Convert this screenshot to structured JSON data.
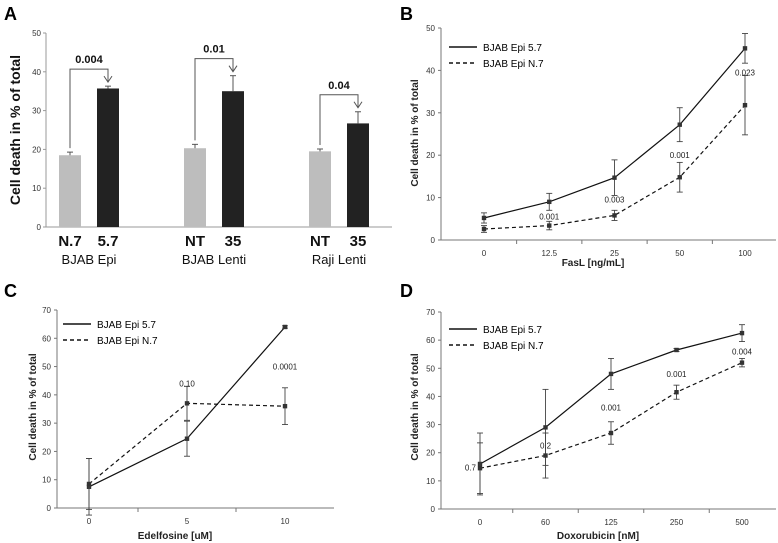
{
  "chart_data": [
    {
      "panel": "A",
      "type": "bar",
      "ylabel": "Cell death in % of total",
      "ylim": [
        0,
        50
      ],
      "yticks": [
        0,
        10,
        20,
        30,
        40,
        50
      ],
      "groups": [
        {
          "name": "BJAB Epi",
          "bars": [
            {
              "label": "N.7",
              "value": 18.5,
              "err": 0.8,
              "color": "#bdbdbd"
            },
            {
              "label": "5.7",
              "value": 35.7,
              "err": 0.6,
              "color": "#222222"
            }
          ],
          "pvalue": "0.004"
        },
        {
          "name": "BJAB Lenti",
          "bars": [
            {
              "label": "NT",
              "value": 20.3,
              "err": 1.0,
              "color": "#bdbdbd"
            },
            {
              "label": "35",
              "value": 35.0,
              "err": 4.0,
              "color": "#222222"
            }
          ],
          "pvalue": "0.01"
        },
        {
          "name": "Raji Lenti",
          "bars": [
            {
              "label": "NT",
              "value": 19.5,
              "err": 0.6,
              "color": "#bdbdbd"
            },
            {
              "label": "35",
              "value": 26.7,
              "err": 3.0,
              "color": "#222222"
            }
          ],
          "pvalue": "0.04"
        }
      ]
    },
    {
      "panel": "B",
      "type": "line",
      "xlabel": "FasL [ng/mL]",
      "ylabel": "Cell death in % of total",
      "categories": [
        "0",
        "12.5",
        "25",
        "50",
        "100"
      ],
      "ylim": [
        0,
        50
      ],
      "yticks": [
        0,
        10,
        20,
        30,
        40,
        50
      ],
      "series": [
        {
          "name": "BJAB Epi 5.7",
          "style": "solid",
          "values": [
            5.2,
            9.0,
            14.7,
            27.2,
            45.2
          ],
          "errors": [
            1.2,
            2.0,
            4.2,
            4.0,
            3.5
          ]
        },
        {
          "name": "BJAB Epi N.7",
          "style": "dashed",
          "values": [
            2.6,
            3.4,
            5.8,
            14.8,
            31.8
          ],
          "errors": [
            0.8,
            1.0,
            1.2,
            3.5,
            7.0
          ]
        }
      ],
      "annotations": [
        {
          "text": "0.001",
          "index": 1,
          "y": 5.5
        },
        {
          "text": "0.003",
          "index": 2,
          "y": 9.5
        },
        {
          "text": "0.001",
          "index": 3,
          "y": 20.0
        },
        {
          "text": "0.023",
          "index": 4,
          "y": 39.5
        }
      ]
    },
    {
      "panel": "C",
      "type": "line",
      "xlabel": "Edelfosine [uM]",
      "ylabel": "Cell death in % of total",
      "categories": [
        "0",
        "5",
        "10"
      ],
      "ylim": [
        0,
        70
      ],
      "yticks": [
        0,
        10,
        20,
        30,
        40,
        50,
        60,
        70
      ],
      "series": [
        {
          "name": "BJAB Epi 5.7",
          "style": "solid",
          "values": [
            7.5,
            24.5,
            64.0
          ],
          "errors": [
            10.0,
            6.2,
            0.4
          ]
        },
        {
          "name": "BJAB Epi N.7",
          "style": "dashed",
          "values": [
            8.5,
            37.0,
            36.0
          ],
          "errors": [
            9.0,
            6.0,
            6.5
          ]
        }
      ],
      "annotations": [
        {
          "text": "0.10",
          "index": 1,
          "y": 44.0
        },
        {
          "text": "0.0001",
          "index": 2,
          "y": 50.0
        }
      ]
    },
    {
      "panel": "D",
      "type": "line",
      "xlabel": "Doxorubicin [nM]",
      "ylabel": "Cell death in % of total",
      "categories": [
        "0",
        "60",
        "125",
        "250",
        "500"
      ],
      "ylim": [
        0,
        70
      ],
      "yticks": [
        0,
        10,
        20,
        30,
        40,
        50,
        60,
        70
      ],
      "series": [
        {
          "name": "BJAB Epi 5.7",
          "style": "solid",
          "values": [
            16.0,
            29.0,
            48.0,
            56.5,
            62.5
          ],
          "errors": [
            11.0,
            13.5,
            5.5,
            0.5,
            3.0
          ]
        },
        {
          "name": "BJAB Epi N.7",
          "style": "dashed",
          "values": [
            14.5,
            19.0,
            27.0,
            41.5,
            52.0
          ],
          "errors": [
            9.0,
            8.0,
            4.0,
            2.5,
            1.5
          ]
        }
      ],
      "annotations": [
        {
          "text": "0.7",
          "index": 0,
          "y": 14.8,
          "anchor": "end"
        },
        {
          "text": "0.2",
          "index": 1,
          "y": 22.5
        },
        {
          "text": "0.001",
          "index": 2,
          "y": 36.0
        },
        {
          "text": "0.001",
          "index": 3,
          "y": 48.0
        },
        {
          "text": "0.004",
          "index": 4,
          "y": 56.0
        }
      ]
    }
  ]
}
